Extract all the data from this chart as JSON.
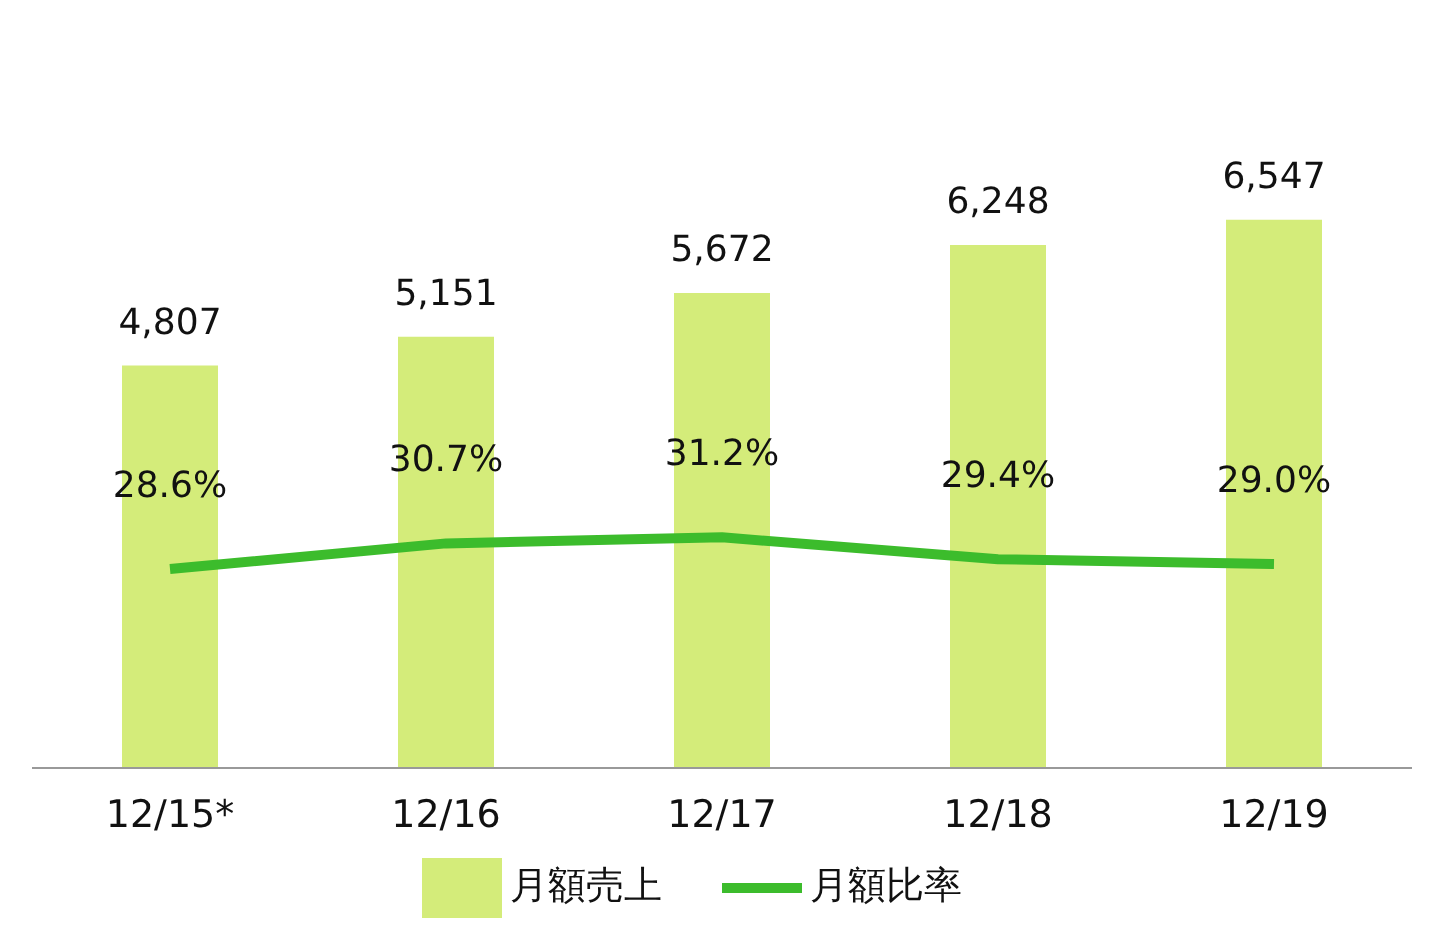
{
  "chart_data": {
    "type": "bar",
    "categories": [
      "12/15*",
      "12/16",
      "12/17",
      "12/18",
      "12/19"
    ],
    "series": [
      {
        "name": "月額売上",
        "color": "#d4ec7a",
        "values": [
          4807,
          5151,
          5672,
          6248,
          6547
        ],
        "value_labels": [
          "4,807",
          "5,151",
          "5,672",
          "6,248",
          "6,547"
        ]
      },
      {
        "name": "月額比率",
        "type": "line",
        "axis": "y2",
        "color": "#3cbc2c",
        "values": [
          28.6,
          30.7,
          31.2,
          29.4,
          29.0
        ],
        "value_labels": [
          "28.6%",
          "30.7%",
          "31.2%",
          "29.4%",
          "29.0%"
        ]
      }
    ],
    "legend": "bottom",
    "grid": false,
    "marker": "none"
  }
}
